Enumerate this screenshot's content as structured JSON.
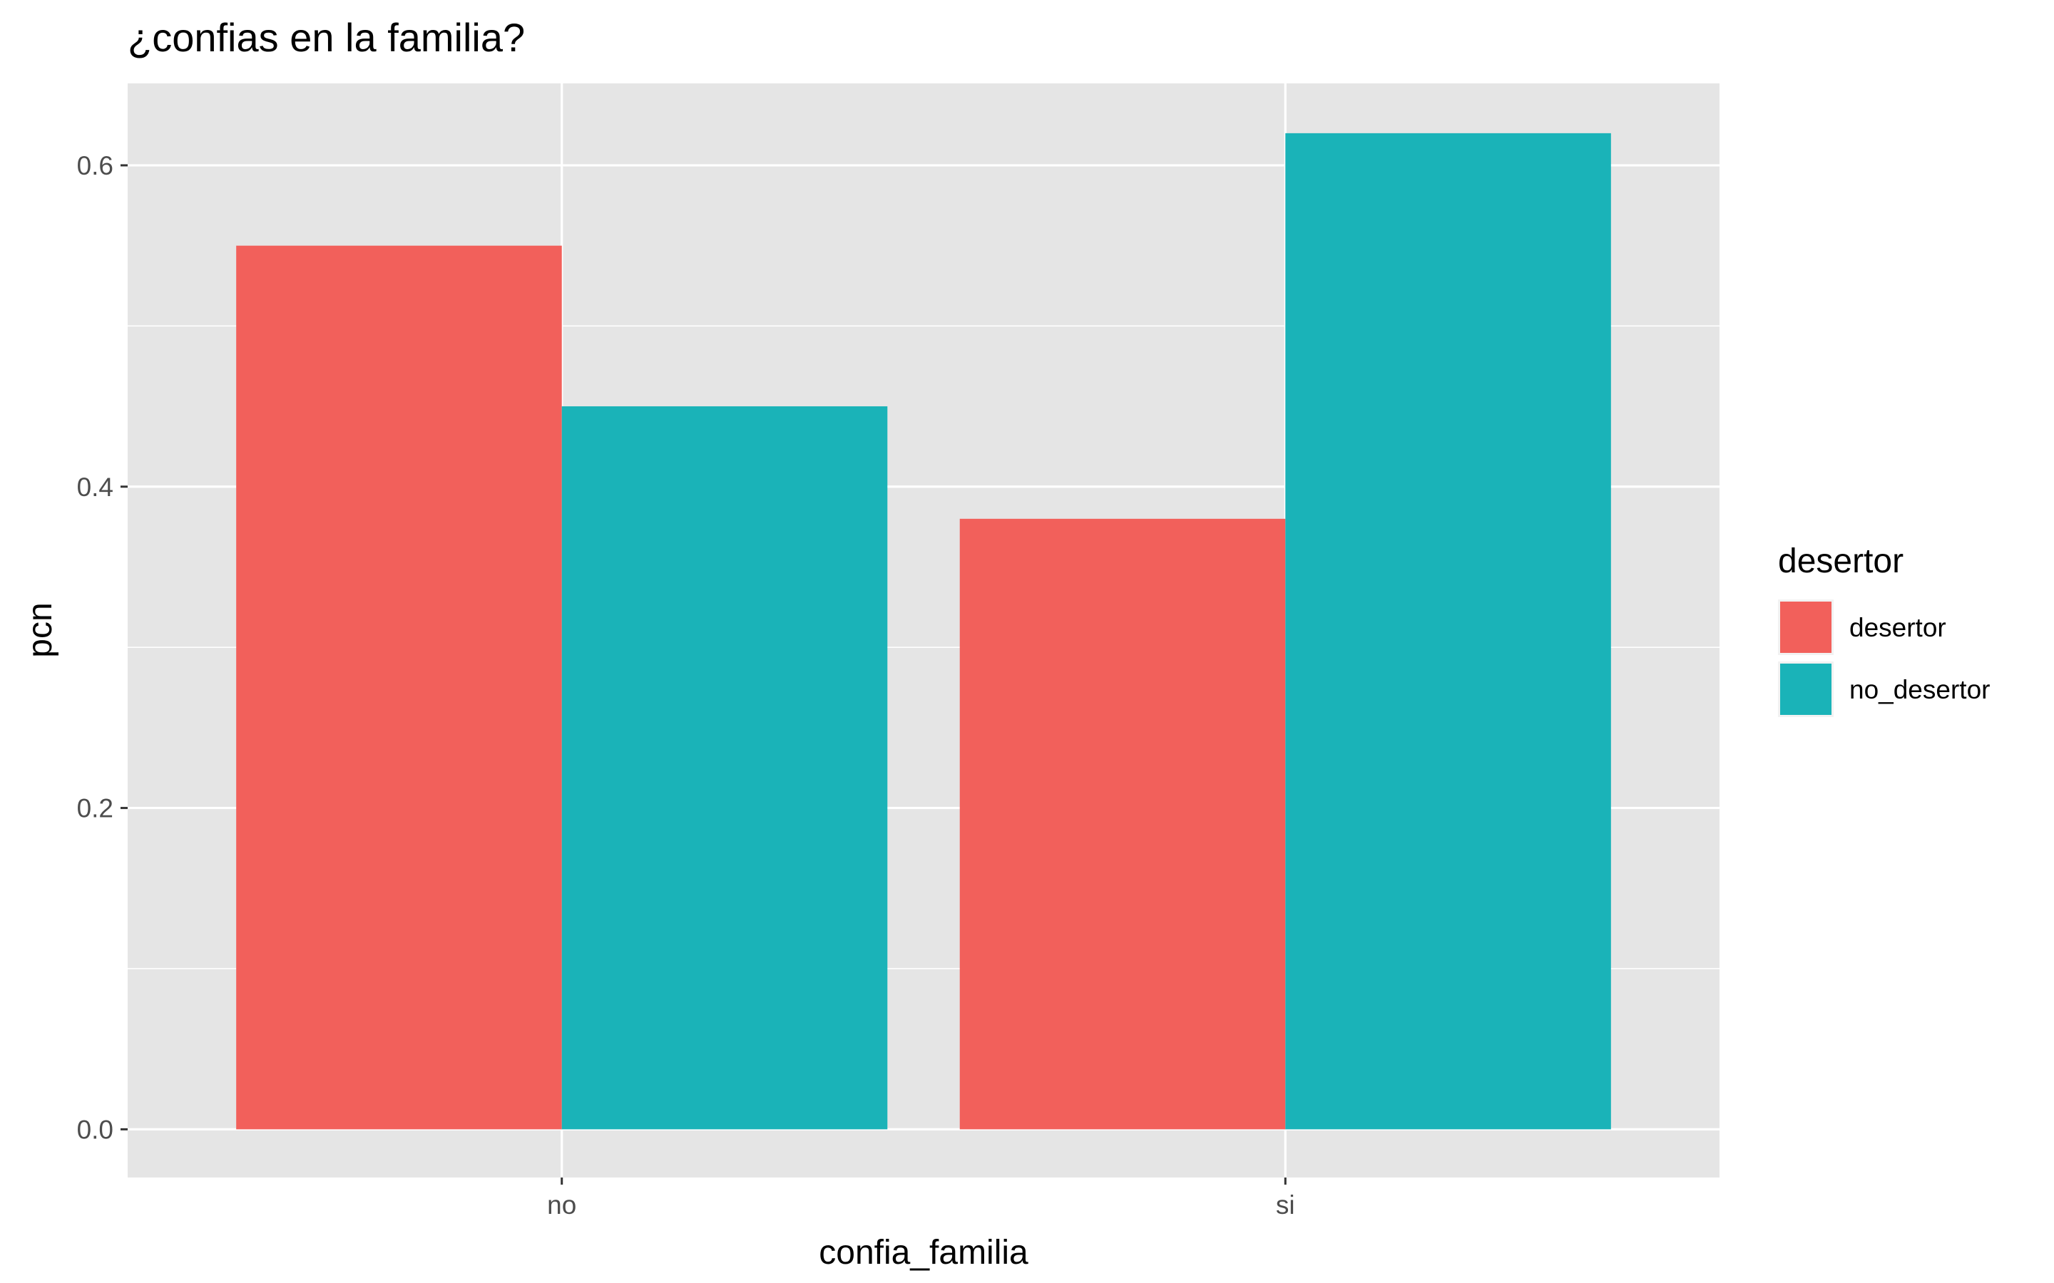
{
  "chart_data": {
    "type": "bar",
    "title": "¿confias en la familia?",
    "xlabel": "confia_familia",
    "ylabel": "pcn",
    "categories": [
      "no",
      "si"
    ],
    "series": [
      {
        "name": "desertor",
        "values": [
          0.55,
          0.38
        ],
        "color": "#F2605B"
      },
      {
        "name": "no_desertor",
        "values": [
          0.45,
          0.62
        ],
        "color": "#1AB3B8"
      }
    ],
    "ylim": [
      -0.03,
      0.651
    ],
    "y_ticks": [
      0.0,
      0.2,
      0.4,
      0.6
    ],
    "y_tick_labels": [
      "0.0",
      "0.2",
      "0.4",
      "0.6"
    ],
    "grid": true,
    "legend": {
      "title": "desertor",
      "placement": "right"
    },
    "panel_background": "#E5E5E5",
    "gridline_color": "#FFFFFF"
  }
}
